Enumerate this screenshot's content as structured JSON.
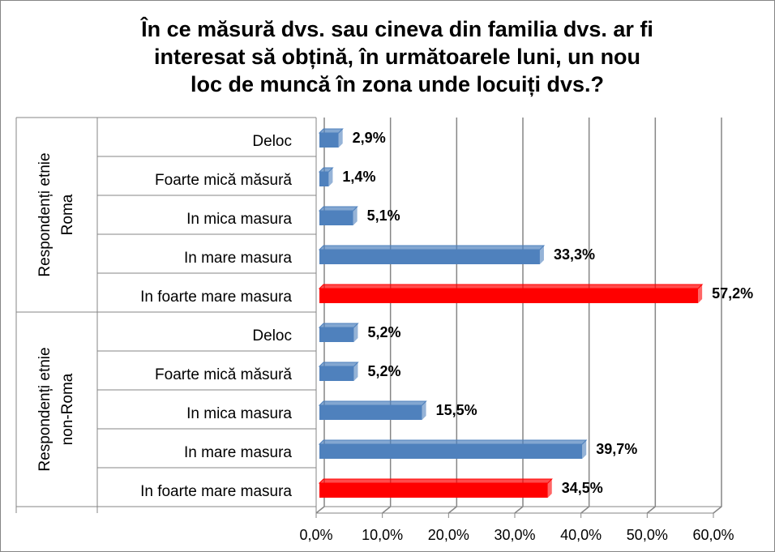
{
  "chart_data": {
    "type": "bar",
    "orientation": "horizontal",
    "title": [
      "În ce măsură dvs. sau cineva din familia dvs. ar fi",
      "interesat să obțină, în următoarele luni, un nou",
      "loc de muncă în zona unde locuiți dvs.?"
    ],
    "groups": [
      {
        "name": [
          "Respondenți etnie",
          "Roma"
        ],
        "categories": [
          "Deloc",
          "Foarte mică măsură",
          "In mica masura",
          "In mare masura",
          "In foarte mare masura"
        ],
        "values": [
          2.9,
          1.4,
          5.1,
          33.3,
          57.2
        ],
        "value_labels": [
          "2,9%",
          "1,4%",
          "5,1%",
          "33,3%",
          "57,2%"
        ],
        "colors": [
          "#4f81bd",
          "#4f81bd",
          "#4f81bd",
          "#4f81bd",
          "#ff0000"
        ]
      },
      {
        "name": [
          "Respondenți etnie",
          "non-Roma"
        ],
        "categories": [
          "Deloc",
          "Foarte mică măsură",
          "In mica masura",
          "In mare masura",
          "In foarte mare masura"
        ],
        "values": [
          5.2,
          5.2,
          15.5,
          39.7,
          34.5
        ],
        "value_labels": [
          "5,2%",
          "5,2%",
          "15,5%",
          "39,7%",
          "34,5%"
        ],
        "colors": [
          "#4f81bd",
          "#4f81bd",
          "#4f81bd",
          "#4f81bd",
          "#ff0000"
        ]
      }
    ],
    "xlim": [
      0,
      60
    ],
    "xticks": [
      {
        "value": 0,
        "label": "0,0%"
      },
      {
        "value": 10,
        "label": "10,0%"
      },
      {
        "value": 20,
        "label": "20,0%"
      },
      {
        "value": 30,
        "label": "30,0%"
      },
      {
        "value": 40,
        "label": "40,0%"
      },
      {
        "value": 50,
        "label": "50,0%"
      },
      {
        "value": 60,
        "label": "60,0%"
      }
    ],
    "grid": true
  }
}
